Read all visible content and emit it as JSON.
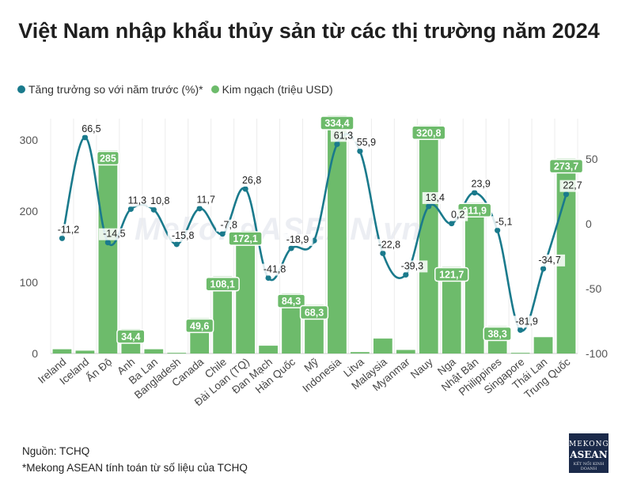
{
  "chart_data": {
    "type": "bar",
    "title": "Việt Nam nhập khẩu thủy sản từ các thị trường năm 2024",
    "categories": [
      "Ireland",
      "Iceland",
      "Ấn Độ",
      "Anh",
      "Ba Lan",
      "Bangladesh",
      "Canada",
      "Chile",
      "Đài Loan (TQ)",
      "Đan Mạch",
      "Hàn Quốc",
      "Mỹ",
      "Indonesia",
      "Litva",
      "Malaysia",
      "Myanmar",
      "Nauy",
      "Nga",
      "Nhật Bản",
      "Philippines",
      "Singapore",
      "Thái Lan",
      "Trung Quốc"
    ],
    "series": [
      {
        "name": "Kim ngạch (triệu USD)",
        "kind": "bar",
        "axis": "left",
        "color": "#6dbb6b",
        "values": [
          6,
          4,
          285,
          34.4,
          6,
          1,
          49.6,
          108.1,
          172.1,
          11,
          84.3,
          68.3,
          334.4,
          2,
          21,
          5,
          320.8,
          121.7,
          211.9,
          38.3,
          1,
          23,
          273.7
        ],
        "labels": [
          "",
          "",
          "285",
          "34,4",
          "",
          "",
          "49,6",
          "108,1",
          "172,1",
          "",
          "84,3",
          "68,3",
          "334,4",
          "",
          "",
          "",
          "320,8",
          "121,7",
          "211,9",
          "38,3",
          "",
          "",
          "273,7"
        ]
      },
      {
        "name": "Tăng trưởng so với năm trước (%)*",
        "kind": "line",
        "axis": "right",
        "color": "#1a7a8c",
        "values": [
          -11.2,
          66.5,
          -14.5,
          11.3,
          10.8,
          -15.8,
          11.7,
          -7.8,
          26.8,
          -41.8,
          -18.9,
          -13,
          61.3,
          55.9,
          -22.8,
          -39.3,
          13.4,
          0.2,
          23.9,
          -5.1,
          -81.9,
          -34.7,
          22.7
        ],
        "labels": [
          "-11,2",
          "66,5",
          "-14,5",
          "11,3",
          "10,8",
          "-15,8",
          "11,7",
          "-7,8",
          "26,8",
          "-41,8",
          "-18,9",
          "",
          "61,3",
          "55,9",
          "-22,8",
          "-39,3",
          "13,4",
          "0,2",
          "23,9",
          "-5,1",
          "-81,9",
          "-34,7",
          "22,7"
        ]
      }
    ],
    "y_left": {
      "range": [
        0,
        330
      ],
      "ticks": [
        "0",
        "100",
        "200",
        "300"
      ]
    },
    "y_right": {
      "range": [
        -100,
        81
      ],
      "ticks": [
        "50",
        "0",
        "-50",
        "-100"
      ]
    },
    "legend_position": "top-left"
  },
  "legend": {
    "line_label": "Tăng trưởng so với năm trước (%)*",
    "bar_label": "Kim ngạch (triệu USD)"
  },
  "footer": {
    "source": "Nguồn: TCHQ",
    "note": "*Mekong ASEAN tính toán từ số liệu của TCHQ"
  },
  "watermark": "MekongASEAN.vn",
  "brand": {
    "line1": "MEKONG",
    "line2": "ASEAN",
    "line3": "KẾT NỐI KINH DOANH"
  },
  "colors": {
    "bar": "#6dbb6b",
    "line": "#1a7a8c"
  }
}
